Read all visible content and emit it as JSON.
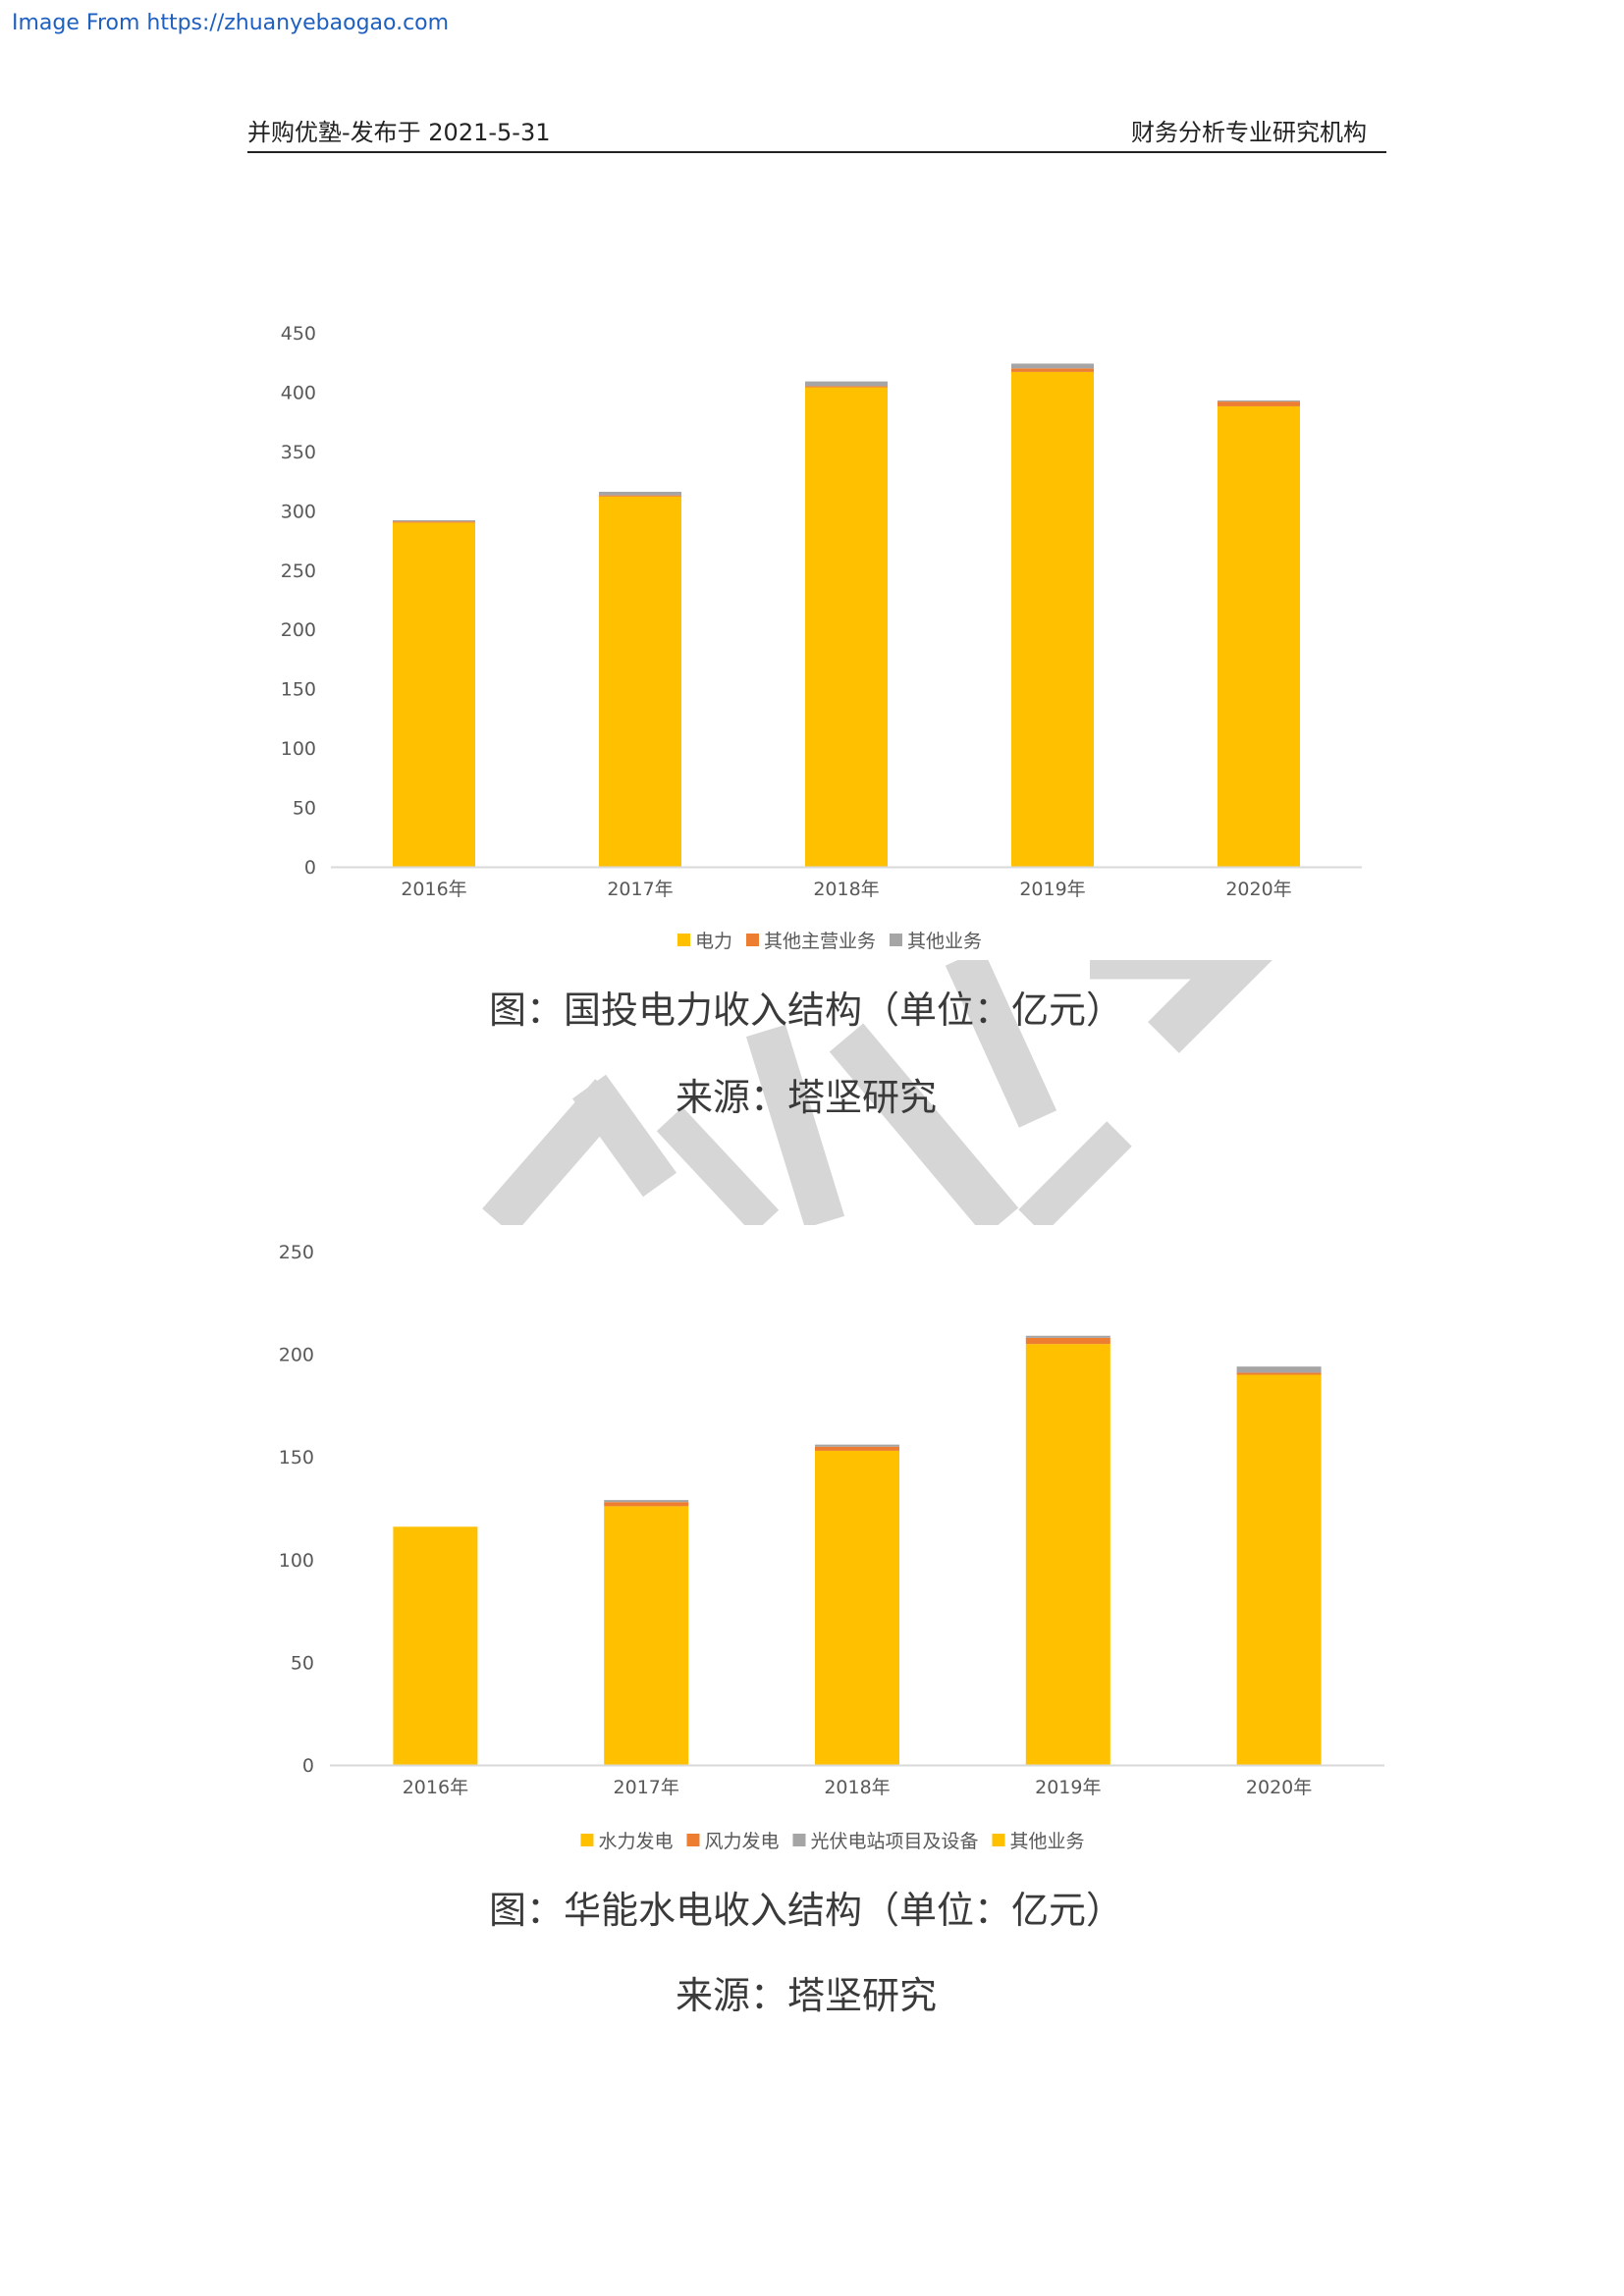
{
  "source_link": "Image From https://zhuanyebaogao.com",
  "header": {
    "left": "并购优塾-发布于 2021-5-31",
    "right": "财务分析专业研究机构"
  },
  "figures": [
    {
      "caption": "图：国投电力收入结构（单位：亿元）",
      "source": "来源：塔坚研究"
    },
    {
      "caption": "图：华能水电收入结构（单位：亿元）",
      "source": "来源：塔坚研究"
    }
  ],
  "colors": {
    "link": "#1f5fbf",
    "axis_text": "#595959",
    "axis_line": "#d9d9d9",
    "gold": "#FFC000",
    "orange": "#ED7D31",
    "gray": "#A5A5A5"
  },
  "chart_data": [
    {
      "type": "bar",
      "stacked": true,
      "title": "",
      "xlabel": "",
      "ylabel": "",
      "categories": [
        "2016年",
        "2017年",
        "2018年",
        "2019年",
        "2020年"
      ],
      "series": [
        {
          "name": "电力",
          "color": "#FFC000",
          "values": [
            290,
            312,
            404,
            417,
            388
          ]
        },
        {
          "name": "其他主营业务",
          "color": "#ED7D31",
          "values": [
            1,
            1,
            1,
            3,
            4
          ]
        },
        {
          "name": "其他业务",
          "color": "#A5A5A5",
          "values": [
            1,
            3,
            4,
            4,
            1
          ]
        }
      ],
      "ylim": [
        0,
        450
      ],
      "yticks": [
        0,
        50,
        100,
        150,
        200,
        250,
        300,
        350,
        400,
        450
      ],
      "grid": false,
      "legend": "bottom"
    },
    {
      "type": "bar",
      "stacked": true,
      "title": "",
      "xlabel": "",
      "ylabel": "",
      "categories": [
        "2016年",
        "2017年",
        "2018年",
        "2019年",
        "2020年"
      ],
      "series": [
        {
          "name": "水力发电",
          "color": "#FFC000",
          "values": [
            116,
            126,
            153,
            205,
            190
          ]
        },
        {
          "name": "风力发电",
          "color": "#ED7D31",
          "values": [
            0,
            2,
            2,
            3,
            1
          ]
        },
        {
          "name": "光伏电站项目及设备",
          "color": "#A5A5A5",
          "values": [
            0,
            1,
            1,
            1,
            3
          ]
        },
        {
          "name": "其他业务",
          "color": "#FFC000",
          "values": [
            0,
            0,
            0,
            0,
            0
          ]
        }
      ],
      "ylim": [
        0,
        250
      ],
      "yticks": [
        0,
        50,
        100,
        150,
        200,
        250
      ],
      "grid": false,
      "legend": "bottom"
    }
  ]
}
